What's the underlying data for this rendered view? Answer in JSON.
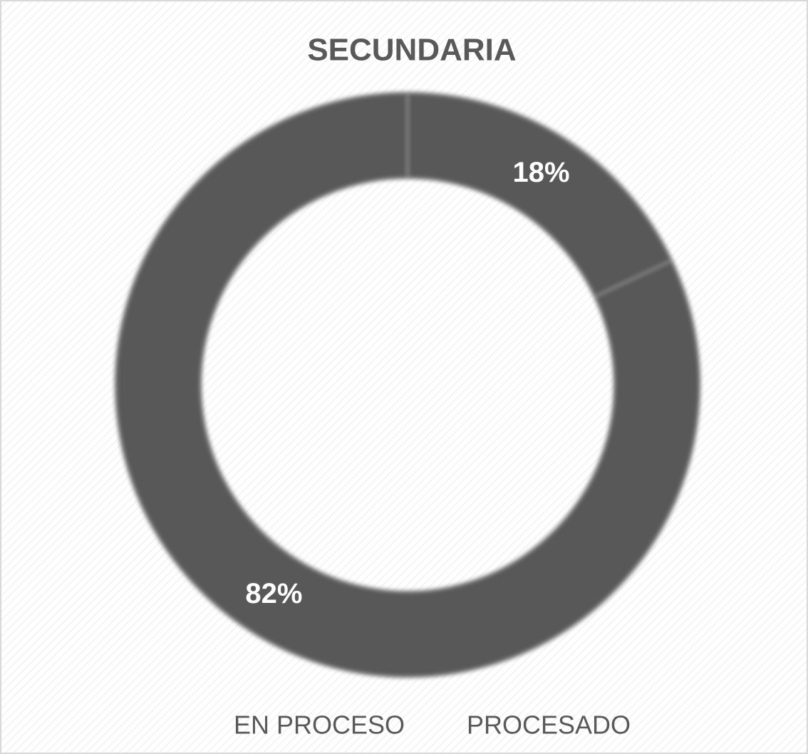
{
  "chart_data": {
    "type": "donut",
    "title": "SECUNDARIA",
    "categories": [
      "EN PROCESO",
      "PROCESADO"
    ],
    "values": [
      18,
      82
    ],
    "value_labels": [
      "18%",
      "82%"
    ],
    "colors": [
      "#595959",
      "#595959"
    ]
  }
}
